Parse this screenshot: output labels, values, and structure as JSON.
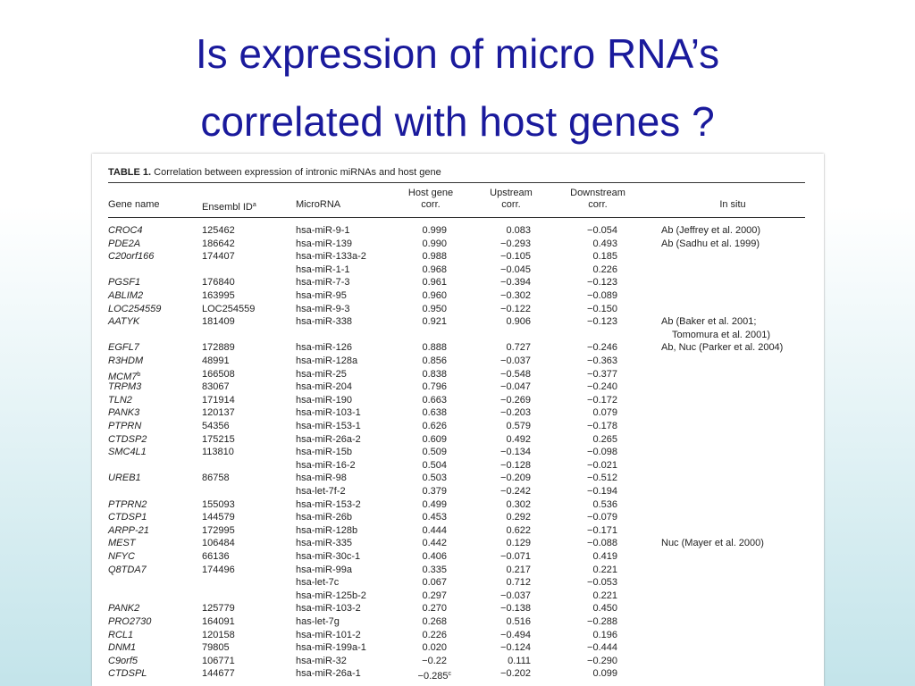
{
  "slide": {
    "title": [
      "Is expression of micro RNA’s",
      "correlated with host genes ?"
    ],
    "table": {
      "label": "TABLE 1.",
      "caption": "Correlation between expression of intronic miRNAs and host gene",
      "headers": [
        {
          "lines": [
            "Gene name"
          ]
        },
        {
          "lines": [
            "Ensembl ID"
          ],
          "sup": "a"
        },
        {
          "lines": [
            "MicroRNA"
          ]
        },
        {
          "lines": [
            "Host gene",
            "corr."
          ]
        },
        {
          "lines": [
            "Upstream",
            "corr."
          ]
        },
        {
          "lines": [
            "Downstream",
            "corr."
          ]
        },
        {
          "lines": [
            "In situ"
          ]
        }
      ],
      "rows": [
        {
          "gene": "CROC4",
          "id": "125462",
          "mirna": "hsa-miR-9-1",
          "host": "0.999",
          "up": "0.083",
          "down": "−0.054",
          "insitu": [
            "Ab (Jeffrey et al. 2000)"
          ]
        },
        {
          "gene": "PDE2A",
          "id": "186642",
          "mirna": "hsa-miR-139",
          "host": "0.990",
          "up": "−0.293",
          "down": "0.493",
          "insitu": [
            "Ab (Sadhu et al. 1999)"
          ]
        },
        {
          "gene": "C20orf166",
          "id": "174407",
          "mirna": "hsa-miR-133a-2",
          "host": "0.988",
          "up": "−0.105",
          "down": "0.185"
        },
        {
          "mirna": "hsa-miR-1-1",
          "host": "0.968",
          "up": "−0.045",
          "down": "0.226"
        },
        {
          "gene": "PGSF1",
          "id": "176840",
          "mirna": "hsa-miR-7-3",
          "host": "0.961",
          "up": "−0.394",
          "down": "−0.123"
        },
        {
          "gene": "ABLIM2",
          "id": "163995",
          "mirna": "hsa-miR-95",
          "host": "0.960",
          "up": "−0.302",
          "down": "−0.089"
        },
        {
          "gene": "LOC254559",
          "id": "LOC254559",
          "mirna": "hsa-miR-9-3",
          "host": "0.950",
          "up": "−0.122",
          "down": "−0.150"
        },
        {
          "gene": "AATYK",
          "id": "181409",
          "mirna": "hsa-miR-338",
          "host": "0.921",
          "up": "0.906",
          "down": "−0.123",
          "insitu": [
            "Ab (Baker et al. 2001;",
            "Tomomura et al. 2001)"
          ]
        },
        {
          "gene": "EGFL7",
          "id": "172889",
          "mirna": "hsa-miR-126",
          "host": "0.888",
          "up": "0.727",
          "down": "−0.246",
          "insitu": [
            "Ab, Nuc (Parker et al. 2004)"
          ]
        },
        {
          "gene": "R3HDM",
          "id": "48991",
          "mirna": "hsa-miR-128a",
          "host": "0.856",
          "up": "−0.037",
          "down": "−0.363"
        },
        {
          "gene": {
            "text": "MCM7",
            "sup": "b"
          },
          "id": "166508",
          "mirna": "hsa-miR-25",
          "host": "0.838",
          "up": "−0.548",
          "down": "−0.377"
        },
        {
          "gene": "TRPM3",
          "id": "83067",
          "mirna": "hsa-miR-204",
          "host": "0.796",
          "up": "−0.047",
          "down": "−0.240"
        },
        {
          "gene": "TLN2",
          "id": "171914",
          "mirna": "hsa-miR-190",
          "host": "0.663",
          "up": "−0.269",
          "down": "−0.172"
        },
        {
          "gene": "PANK3",
          "id": "120137",
          "mirna": "hsa-miR-103-1",
          "host": "0.638",
          "up": "−0.203",
          "down": "0.079"
        },
        {
          "gene": "PTPRN",
          "id": "54356",
          "mirna": "hsa-miR-153-1",
          "host": "0.626",
          "up": "0.579",
          "down": "−0.178"
        },
        {
          "gene": "CTDSP2",
          "id": "175215",
          "mirna": "hsa-miR-26a-2",
          "host": "0.609",
          "up": "0.492",
          "down": "0.265"
        },
        {
          "gene": "SMC4L1",
          "id": "113810",
          "mirna": "hsa-miR-15b",
          "host": "0.509",
          "up": "−0.134",
          "down": "−0.098"
        },
        {
          "mirna": "hsa-miR-16-2",
          "host": "0.504",
          "up": "−0.128",
          "down": "−0.021"
        },
        {
          "gene": "UREB1",
          "id": "86758",
          "mirna": "hsa-miR-98",
          "host": "0.503",
          "up": "−0.209",
          "down": "−0.512"
        },
        {
          "mirna": "hsa-let-7f-2",
          "host": "0.379",
          "up": "−0.242",
          "down": "−0.194"
        },
        {
          "gene": "PTPRN2",
          "id": "155093",
          "mirna": "hsa-miR-153-2",
          "host": "0.499",
          "up": "0.302",
          "down": "0.536"
        },
        {
          "gene": "CTDSP1",
          "id": "144579",
          "mirna": "hsa-miR-26b",
          "host": "0.453",
          "up": "0.292",
          "down": "−0.079"
        },
        {
          "gene": "ARPP-21",
          "id": "172995",
          "mirna": "hsa-miR-128b",
          "host": "0.444",
          "up": "0.622",
          "down": "−0.171"
        },
        {
          "gene": "MEST",
          "id": "106484",
          "mirna": "hsa-miR-335",
          "host": "0.442",
          "up": "0.129",
          "down": "−0.088",
          "insitu": [
            "Nuc (Mayer et al. 2000)"
          ]
        },
        {
          "gene": "NFYC",
          "id": "66136",
          "mirna": "hsa-miR-30c-1",
          "host": "0.406",
          "up": "−0.071",
          "down": "0.419"
        },
        {
          "gene": "Q8TDA7",
          "id": "174496",
          "mirna": "hsa-miR-99a",
          "host": "0.335",
          "up": "0.217",
          "down": "0.221"
        },
        {
          "mirna": "hsa-let-7c",
          "host": "0.067",
          "up": "0.712",
          "down": "−0.053"
        },
        {
          "mirna": "hsa-miR-125b-2",
          "host": "0.297",
          "up": "−0.037",
          "down": "0.221"
        },
        {
          "gene": "PANK2",
          "id": "125779",
          "mirna": "hsa-miR-103-2",
          "host": "0.270",
          "up": "−0.138",
          "down": "0.450"
        },
        {
          "gene": "PRO2730",
          "id": "164091",
          "mirna": "has-let-7g",
          "host": "0.268",
          "up": "0.516",
          "down": "−0.288"
        },
        {
          "gene": "RCL1",
          "id": "120158",
          "mirna": "hsa-miR-101-2",
          "host": "0.226",
          "up": "−0.494",
          "down": "0.196"
        },
        {
          "gene": "DNM1",
          "id": "79805",
          "mirna": "hsa-miR-199a-1",
          "host": "0.020",
          "up": "−0.124",
          "down": "−0.444"
        },
        {
          "gene": "C9orf5",
          "id": "106771",
          "mirna": "hsa-miR-32",
          "host": "−0.22",
          "up": "0.111",
          "down": "−0.290"
        },
        {
          "gene": "CTDSPL",
          "id": "144677",
          "mirna": "hsa-miR-26a-1",
          "host": {
            "text": "−0.285",
            "sup": "c"
          },
          "up": "−0.202",
          "down": "0.099"
        }
      ]
    }
  }
}
